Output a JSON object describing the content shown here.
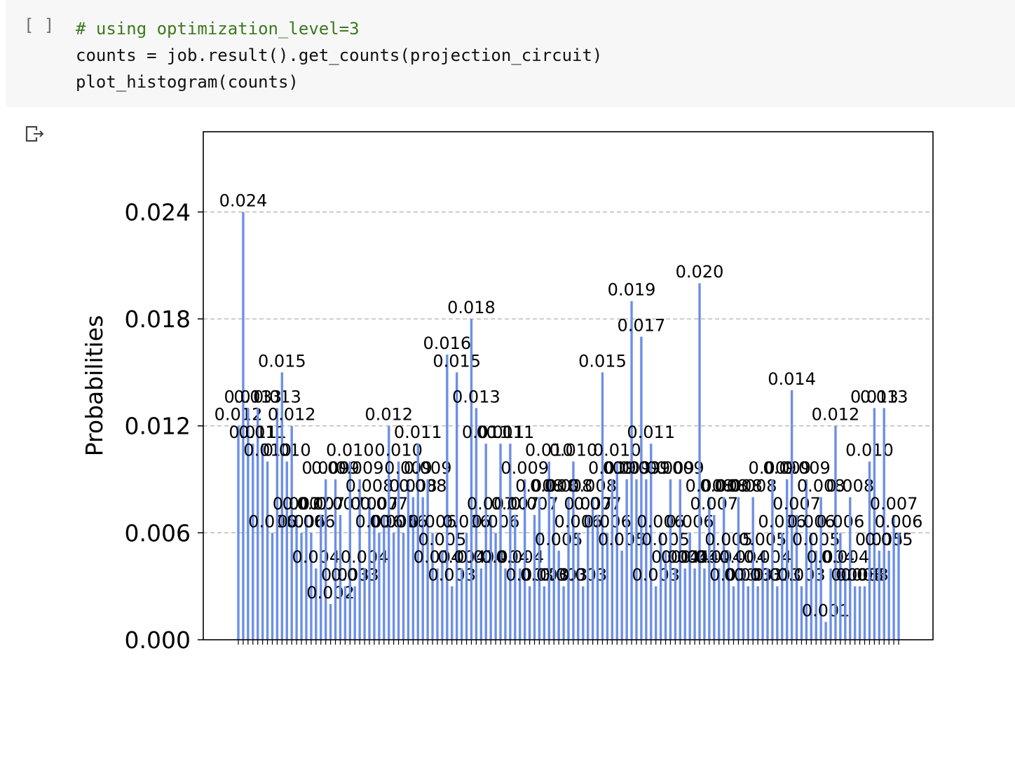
{
  "cell": {
    "prompt": "[ ]",
    "code_lines": [
      "# using optimization_level=3",
      "counts = job.result().get_counts(projection_circuit)",
      "plot_histogram(counts)"
    ]
  },
  "output_icon": "output-arrow-icon",
  "colors": {
    "bar": "#6d8fe6",
    "comment": "#3c7a1e",
    "grid": "#b0b0b0"
  },
  "chart_data": {
    "type": "bar",
    "ylabel": "Probabilities",
    "ylim": [
      0,
      0.0285
    ],
    "yticks": [
      "0.000",
      "0.006",
      "0.012",
      "0.018",
      "0.024"
    ],
    "ytick_values": [
      0.0,
      0.006,
      0.012,
      0.018,
      0.024
    ],
    "grid": "horizontal-dashed",
    "values": [
      0.012,
      0.024,
      0.013,
      0.011,
      0.013,
      0.011,
      0.01,
      0.006,
      0.013,
      0.015,
      0.01,
      0.012,
      0.007,
      0.006,
      0.007,
      0.006,
      0.004,
      0.007,
      0.009,
      0.002,
      0.009,
      0.007,
      0.003,
      0.01,
      0.003,
      0.009,
      0.004,
      0.008,
      0.007,
      0.006,
      0.007,
      0.012,
      0.006,
      0.01,
      0.006,
      0.009,
      0.008,
      0.011,
      0.008,
      0.009,
      0.006,
      0.004,
      0.005,
      0.016,
      0.003,
      0.015,
      0.004,
      0.006,
      0.018,
      0.013,
      0.004,
      0.011,
      0.007,
      0.006,
      0.011,
      0.004,
      0.011,
      0.007,
      0.004,
      0.009,
      0.003,
      0.007,
      0.008,
      0.003,
      0.01,
      0.008,
      0.005,
      0.003,
      0.008,
      0.01,
      0.006,
      0.003,
      0.007,
      0.008,
      0.007,
      0.015,
      0.006,
      0.009,
      0.01,
      0.005,
      0.009,
      0.019,
      0.009,
      0.017,
      0.009,
      0.011,
      0.003,
      0.006,
      0.005,
      0.009,
      0.004,
      0.009,
      0.004,
      0.006,
      0.004,
      0.02,
      0.004,
      0.008,
      0.007,
      0.004,
      0.008,
      0.005,
      0.003,
      0.008,
      0.004,
      0.003,
      0.008,
      0.003,
      0.005,
      0.004,
      0.009,
      0.003,
      0.006,
      0.009,
      0.014,
      0.007,
      0.003,
      0.009,
      0.006,
      0.005,
      0.008,
      0.001,
      0.004,
      0.012,
      0.006,
      0.004,
      0.008,
      0.003,
      0.003,
      0.003,
      0.01,
      0.013,
      0.005,
      0.013,
      0.005,
      0.007,
      0.006
    ],
    "value_labels": [
      "0.012",
      "0.024",
      "0.013",
      "0.011",
      "0.013",
      "0.011",
      "0.010",
      "0.006",
      "0.013",
      "0.015",
      "0.010",
      "0.012",
      "0.007",
      "0.006",
      "0.007",
      "0.006",
      "0.004",
      "0.007",
      "0.009",
      "0.002",
      "0.009",
      "0.007",
      "0.003",
      "0.010",
      "0.003",
      "0.009",
      "0.004",
      "0.008",
      "0.007",
      "0.006",
      "0.007",
      "0.012",
      "0.006",
      "0.010",
      "0.006",
      "0.009",
      "0.008",
      "0.011",
      "0.008",
      "0.009",
      "0.006",
      "0.004",
      "0.005",
      "0.016",
      "0.003",
      "0.015",
      "0.004",
      "0.006",
      "0.018",
      "0.013",
      "0.004",
      "0.011",
      "0.007",
      "0.006",
      "0.011",
      "0.004",
      "0.011",
      "0.007",
      "0.004",
      "0.009",
      "0.003",
      "0.007",
      "0.008",
      "0.003",
      "0.010",
      "0.008",
      "0.005",
      "0.003",
      "0.008",
      "0.010",
      "0.006",
      "0.003",
      "0.007",
      "0.008",
      "0.007",
      "0.015",
      "0.006",
      "0.009",
      "0.010",
      "0.005",
      "0.009",
      "0.019",
      "0.009",
      "0.017",
      "0.009",
      "0.011",
      "0.003",
      "0.006",
      "0.005",
      "0.009",
      "0.004",
      "0.009",
      "0.004",
      "0.006",
      "0.004",
      "0.020",
      "0.004",
      "0.008",
      "0.007",
      "0.004",
      "0.008",
      "0.005",
      "0.003",
      "0.008",
      "0.004",
      "0.003",
      "0.008",
      "0.003",
      "0.005",
      "0.004",
      "0.009",
      "0.003",
      "0.006",
      "0.009",
      "0.014",
      "0.007",
      "0.003",
      "0.009",
      "0.006",
      "0.005",
      "0.008",
      "0.001",
      "0.004",
      "0.012",
      "0.006",
      "0.004",
      "0.008",
      "0.003",
      "0.003",
      "0.003",
      "0.010",
      "0.013",
      "0.005",
      "0.013",
      "0.005",
      "0.007",
      "0.006"
    ]
  }
}
